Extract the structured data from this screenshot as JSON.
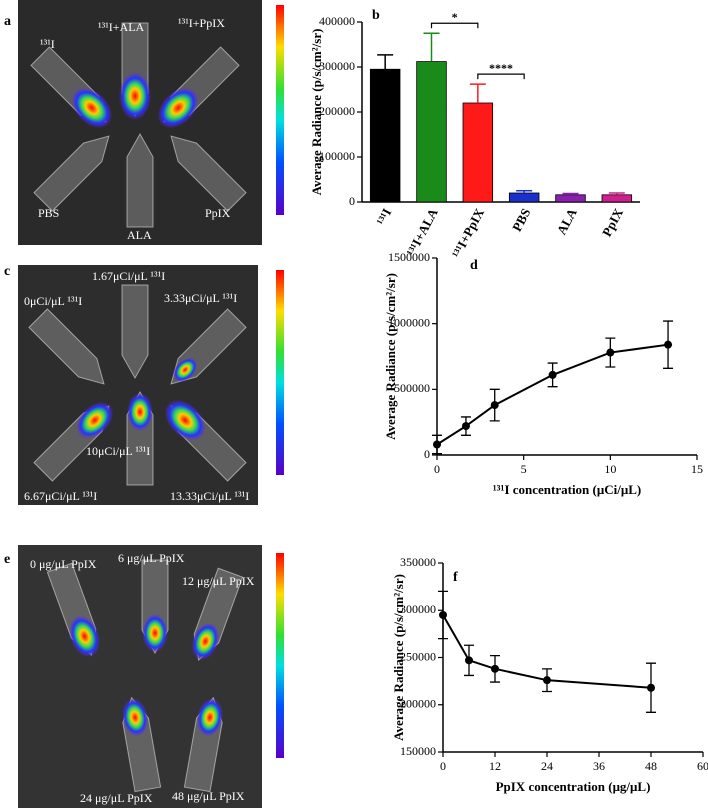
{
  "images": [
    {
      "panel": "a",
      "labels": [
        "¹³¹I",
        "¹³¹I+ALA",
        "¹³¹I+PpIX",
        "PBS",
        "ALA",
        "PpIX"
      ]
    },
    {
      "panel": "c",
      "labels": [
        "1.67μCi/μL ¹³¹I",
        "0μCi/μL ¹³¹I",
        "3.33μCi/μL ¹³¹I",
        "10μCi/μL ¹³¹I",
        "6.67μCi/μL ¹³¹I",
        "13.33μCi/μL ¹³¹I"
      ]
    },
    {
      "panel": "e",
      "labels": [
        "0 μg/μL PpIX",
        "6 μg/μL PpIX",
        "12 μg/μL PpIX",
        "24 μg/μL PpIX",
        "48 μg/μL PpIX"
      ]
    }
  ],
  "chart_data": [
    {
      "type": "bar",
      "panel": "b",
      "ylabel": "Average Radiance (p/s/cm²/sr)",
      "categories": [
        "¹³¹I",
        "¹³¹I+ALA",
        "¹³¹I+PpIX",
        "PBS",
        "ALA",
        "PpIX"
      ],
      "values": [
        295000,
        312000,
        220000,
        20000,
        16000,
        16000
      ],
      "errors": [
        32000,
        63000,
        42000,
        5000,
        3000,
        4000
      ],
      "colors": [
        "#000000",
        "#1a8a1a",
        "#ff1a1a",
        "#1a2fcc",
        "#8a1fb0",
        "#d21e8c"
      ],
      "ylim": [
        0,
        400000
      ],
      "yticks": [
        0,
        100000,
        200000,
        300000,
        400000
      ],
      "annotations": [
        {
          "text": "*",
          "between": [
            "¹³¹I+ALA",
            "¹³¹I+PpIX"
          ]
        },
        {
          "text": "****",
          "between": [
            "¹³¹I+PpIX",
            "PBS"
          ]
        }
      ]
    },
    {
      "type": "line",
      "panel": "d",
      "ylabel": "Average Radiance (p/s/cm²/sr)",
      "xlabel": "¹³¹I concentration (μCi/μL)",
      "x": [
        0,
        1.67,
        3.33,
        6.67,
        10,
        13.33
      ],
      "values": [
        80000,
        220000,
        380000,
        610000,
        780000,
        840000
      ],
      "errors": [
        70000,
        70000,
        120000,
        90000,
        110000,
        180000
      ],
      "color": "#000000",
      "xlim": [
        0,
        15
      ],
      "xticks": [
        0,
        5,
        10,
        15
      ],
      "ylim": [
        0,
        1500000
      ],
      "yticks": [
        0,
        500000,
        1000000,
        1500000
      ]
    },
    {
      "type": "line",
      "panel": "f",
      "ylabel": "Average Radiance (p/s/cm²/sr)",
      "xlabel": "PpIX concentration (μg/μL)",
      "x": [
        0,
        6,
        12,
        24,
        48
      ],
      "values": [
        295000,
        247000,
        238000,
        226000,
        218000
      ],
      "errors": [
        25000,
        16000,
        14000,
        12000,
        26000
      ],
      "color": "#000000",
      "xlim": [
        0,
        60
      ],
      "xticks": [
        0,
        12,
        24,
        36,
        48,
        60
      ],
      "ylim": [
        150000,
        350000
      ],
      "yticks": [
        150000,
        200000,
        250000,
        300000,
        350000
      ]
    }
  ]
}
